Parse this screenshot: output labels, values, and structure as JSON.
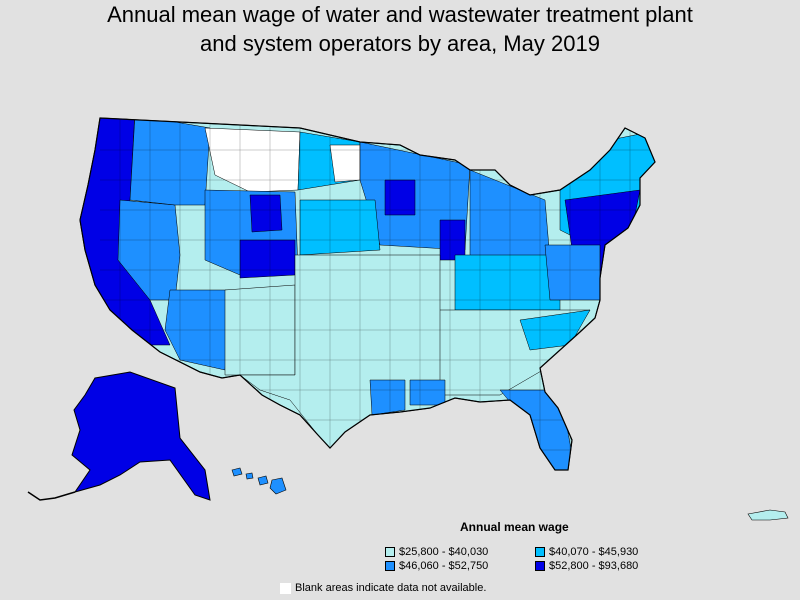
{
  "title": {
    "line1": "Annual mean wage of water and wastewater treatment plant",
    "line2": "and system operators by area, May 2019"
  },
  "legend": {
    "title": "Annual mean wage",
    "items": [
      {
        "label": "$25,800 - $40,030",
        "color": "#b4eeee"
      },
      {
        "label": "$40,070 - $45,930",
        "color": "#00bfff"
      },
      {
        "label": "$46,060 - $52,750",
        "color": "#1e90ff"
      },
      {
        "label": "$52,800 - $93,680",
        "color": "#0000e6"
      }
    ],
    "blank_note": "Blank areas indicate data not available.",
    "blank_color": "#ffffff"
  },
  "map": {
    "background": "#e1e1e1",
    "regions": [
      "contiguous-us",
      "alaska",
      "hawaii",
      "puerto-rico"
    ]
  }
}
